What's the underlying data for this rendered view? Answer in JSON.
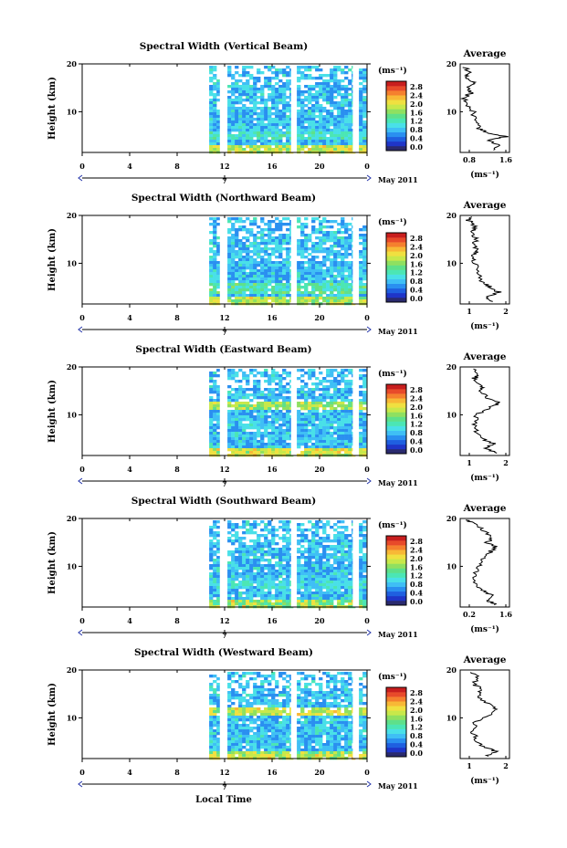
{
  "figure": {
    "xlabel": "Local Time",
    "date_label": "May 2011",
    "day_label": "7",
    "avg_title": "Average",
    "cbar_unit": "(ms⁻¹)",
    "avg_xlabel": "(ms⁻¹)"
  },
  "colormap": [
    "#2a2a6e",
    "#1f35c8",
    "#1f5fe0",
    "#2a8ff0",
    "#3fbff5",
    "#49e0e8",
    "#4be6b4",
    "#5ee08a",
    "#8fe060",
    "#c8e84a",
    "#f0e040",
    "#f8b836",
    "#f5802e",
    "#e84a2a",
    "#c81e1e"
  ],
  "chart_data": [
    {
      "type": "heatmap",
      "title": "Spectral Width (Vertical Beam)",
      "ylabel": "Height (km)",
      "x_ticks": [
        "0",
        "4",
        "8",
        "12",
        "16",
        "20",
        "0"
      ],
      "y_ticks": [
        "20",
        "10"
      ],
      "xlim": [
        0,
        24
      ],
      "ylim": [
        1.5,
        20
      ],
      "colorbar_ticks": [
        "2.8",
        "2.4",
        "2.0",
        "1.6",
        "1.2",
        "0.8",
        "0.4",
        "0.0"
      ],
      "data_start_hour": 10.7,
      "gaps_hours": [
        [
          11.6,
          12.2
        ],
        [
          17.6,
          17.9
        ],
        [
          22.8,
          23.2
        ]
      ],
      "high_rows": [
        {
          "h": 2.2,
          "level": 0.75
        },
        {
          "h": 5.5,
          "level": 0.55
        }
      ],
      "avg_profile": {
        "xticks": [
          "0.8",
          "1.6"
        ],
        "xlim": [
          0.5,
          1.8
        ],
        "points": [
          [
            1.35,
            2
          ],
          [
            1.55,
            3
          ],
          [
            1.2,
            4
          ],
          [
            1.7,
            4.8
          ],
          [
            1.25,
            5.5
          ],
          [
            1.0,
            6.5
          ],
          [
            0.9,
            8
          ],
          [
            0.85,
            10
          ],
          [
            0.65,
            11.5
          ],
          [
            0.6,
            13
          ],
          [
            0.8,
            14
          ],
          [
            0.7,
            15
          ],
          [
            0.9,
            16
          ],
          [
            0.65,
            17
          ],
          [
            0.75,
            18
          ],
          [
            0.6,
            19.5
          ]
        ]
      }
    },
    {
      "type": "heatmap",
      "title": "Spectral Width (Northward Beam)",
      "ylabel": "Height (km)",
      "x_ticks": [
        "0",
        "4",
        "8",
        "12",
        "16",
        "20",
        "0"
      ],
      "y_ticks": [
        "20",
        "10"
      ],
      "xlim": [
        0,
        24
      ],
      "ylim": [
        1.5,
        20
      ],
      "colorbar_ticks": [
        "2.8",
        "2.4",
        "2.0",
        "1.6",
        "1.2",
        "0.8",
        "0.4",
        "0.0"
      ],
      "data_start_hour": 10.7,
      "gaps_hours": [
        [
          11.6,
          12.2
        ],
        [
          17.6,
          17.9
        ],
        [
          22.8,
          23.2
        ]
      ],
      "high_rows": [
        {
          "h": 2.5,
          "level": 0.7
        },
        {
          "h": 5.0,
          "level": 0.6
        }
      ],
      "avg_profile": {
        "xticks": [
          "1",
          "2"
        ],
        "xlim": [
          0.3,
          2.1
        ],
        "points": [
          [
            1.5,
            2
          ],
          [
            1.3,
            3
          ],
          [
            1.7,
            4
          ],
          [
            1.4,
            5
          ],
          [
            1.1,
            6
          ],
          [
            0.95,
            8
          ],
          [
            0.85,
            10
          ],
          [
            0.8,
            11.5
          ],
          [
            0.9,
            12.5
          ],
          [
            0.75,
            14
          ],
          [
            0.9,
            15
          ],
          [
            0.7,
            16.5
          ],
          [
            0.85,
            17.5
          ],
          [
            0.6,
            19
          ],
          [
            0.75,
            19.8
          ]
        ]
      }
    },
    {
      "type": "heatmap",
      "title": "Spectral Width (Eastward Beam)",
      "ylabel": "Height (km)",
      "x_ticks": [
        "0",
        "4",
        "8",
        "12",
        "16",
        "20",
        "0"
      ],
      "y_ticks": [
        "20",
        "10"
      ],
      "xlim": [
        0,
        24
      ],
      "ylim": [
        1.5,
        20
      ],
      "colorbar_ticks": [
        "2.8",
        "2.4",
        "2.0",
        "1.6",
        "1.2",
        "0.8",
        "0.4",
        "0.0"
      ],
      "data_start_hour": 10.7,
      "gaps_hours": [
        [
          11.6,
          12.2
        ],
        [
          17.6,
          17.9
        ],
        [
          22.8,
          23.2
        ]
      ],
      "high_rows": [
        {
          "h": 2.2,
          "level": 0.8
        },
        {
          "h": 12.2,
          "level": 0.75
        }
      ],
      "avg_profile": {
        "xticks": [
          "1",
          "2"
        ],
        "xlim": [
          0.3,
          2.1
        ],
        "points": [
          [
            1.6,
            2
          ],
          [
            1.2,
            3
          ],
          [
            1.5,
            4
          ],
          [
            1.1,
            5
          ],
          [
            0.9,
            6.5
          ],
          [
            0.8,
            8
          ],
          [
            0.9,
            10
          ],
          [
            1.4,
            11.5
          ],
          [
            1.7,
            12.5
          ],
          [
            1.3,
            13.5
          ],
          [
            1.0,
            15
          ],
          [
            1.1,
            16
          ],
          [
            0.8,
            17.5
          ],
          [
            0.95,
            18.5
          ],
          [
            0.7,
            19.8
          ]
        ]
      }
    },
    {
      "type": "heatmap",
      "title": "Spectral Width (Southward Beam)",
      "ylabel": "Height (km)",
      "x_ticks": [
        "0",
        "4",
        "8",
        "12",
        "16",
        "20",
        "0"
      ],
      "y_ticks": [
        "20",
        "10"
      ],
      "xlim": [
        0,
        24
      ],
      "ylim": [
        1.5,
        20
      ],
      "colorbar_ticks": [
        "2.8",
        "2.4",
        "2.0",
        "1.6",
        "1.2",
        "0.8",
        "0.4",
        "0.0"
      ],
      "data_start_hour": 10.7,
      "gaps_hours": [
        [
          11.6,
          12.2
        ],
        [
          17.6,
          17.9
        ],
        [
          22.8,
          23.2
        ]
      ],
      "high_rows": [
        {
          "h": 2.5,
          "level": 0.55
        },
        {
          "h": 6.5,
          "level": 0.5
        }
      ],
      "avg_profile": {
        "xticks": [
          "0.2",
          "1.6"
        ],
        "xlim": [
          0.1,
          1.75
        ],
        "points": [
          [
            1.3,
            2
          ],
          [
            1.0,
            3
          ],
          [
            1.2,
            4
          ],
          [
            0.8,
            5
          ],
          [
            0.6,
            6
          ],
          [
            0.55,
            8
          ],
          [
            0.7,
            10
          ],
          [
            0.9,
            11.5
          ],
          [
            1.1,
            13
          ],
          [
            1.3,
            14
          ],
          [
            1.0,
            15
          ],
          [
            1.2,
            16
          ],
          [
            0.9,
            17.5
          ],
          [
            0.5,
            19
          ],
          [
            0.3,
            19.8
          ]
        ]
      }
    },
    {
      "type": "heatmap",
      "title": "Spectral Width (Westward Beam)",
      "ylabel": "Height (km)",
      "x_ticks": [
        "0",
        "4",
        "8",
        "12",
        "16",
        "20",
        "0"
      ],
      "y_ticks": [
        "20",
        "10"
      ],
      "xlim": [
        0,
        24
      ],
      "ylim": [
        1.5,
        20
      ],
      "colorbar_ticks": [
        "2.8",
        "2.4",
        "2.0",
        "1.6",
        "1.2",
        "0.8",
        "0.4",
        "0.0"
      ],
      "data_start_hour": 10.7,
      "gaps_hours": [
        [
          11.6,
          12.2
        ],
        [
          17.6,
          17.9
        ],
        [
          22.8,
          23.2
        ]
      ],
      "high_rows": [
        {
          "h": 2.0,
          "level": 0.75
        },
        {
          "h": 11.5,
          "level": 0.8
        }
      ],
      "avg_profile": {
        "xticks": [
          "1",
          "2"
        ],
        "xlim": [
          0.3,
          2.1
        ],
        "points": [
          [
            1.3,
            2
          ],
          [
            1.6,
            3
          ],
          [
            1.1,
            4
          ],
          [
            0.9,
            5.5
          ],
          [
            0.75,
            7
          ],
          [
            0.85,
            9
          ],
          [
            1.3,
            10.5
          ],
          [
            1.6,
            11.8
          ],
          [
            1.3,
            13
          ],
          [
            1.0,
            14.5
          ],
          [
            1.1,
            16
          ],
          [
            0.8,
            17
          ],
          [
            0.95,
            18.5
          ],
          [
            0.7,
            19.8
          ]
        ]
      }
    }
  ]
}
